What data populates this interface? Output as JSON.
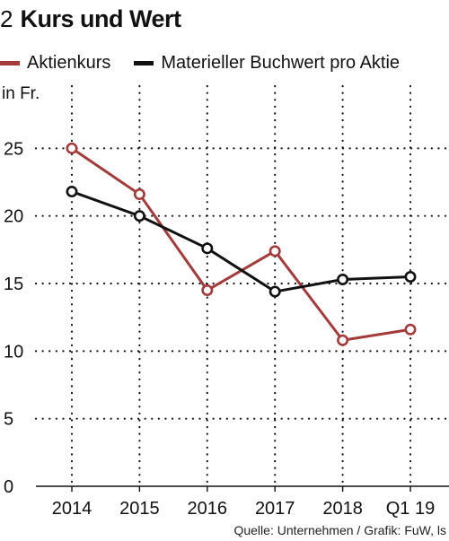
{
  "header": {
    "figure_number": "2",
    "title": "Kurs und Wert"
  },
  "unit_label": "in Fr.",
  "source": "Quelle: Unternehmen / Grafik: FuW, ls",
  "colors": {
    "aktienkurs": "#a33b3b",
    "buchwert": "#111111",
    "grid": "#111111"
  },
  "chart_data": {
    "type": "line",
    "title": "Kurs und Wert",
    "ylabel": "in Fr.",
    "xlabel": "",
    "categories": [
      "2014",
      "2015",
      "2016",
      "2017",
      "2018",
      "Q1 19"
    ],
    "ylim": [
      0,
      30
    ],
    "yticks": [
      0,
      5,
      10,
      15,
      20,
      25
    ],
    "grid": true,
    "legend_position": "top",
    "series": [
      {
        "name": "Aktienkurs",
        "values": [
          25.0,
          21.6,
          14.5,
          17.4,
          10.8,
          11.6
        ]
      },
      {
        "name": "Materieller Buchwert pro Aktie",
        "values": [
          21.8,
          20.0,
          17.6,
          14.4,
          15.3,
          15.5
        ]
      }
    ]
  }
}
